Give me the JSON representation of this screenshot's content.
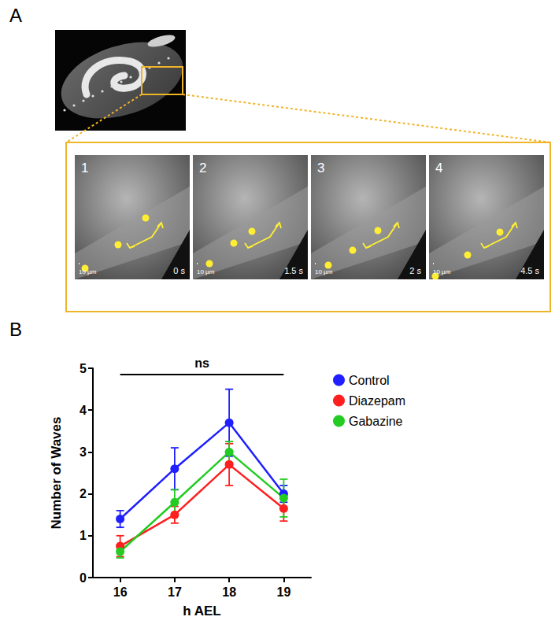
{
  "panels": {
    "a": {
      "letter": "A",
      "frames": [
        {
          "label": "1",
          "time": "0 s",
          "scale_bar": "10 µm"
        },
        {
          "label": "2",
          "time": "1.5 s",
          "scale_bar": "10 µm"
        },
        {
          "label": "3",
          "time": "2 s",
          "scale_bar": "10 µm"
        },
        {
          "label": "4",
          "time": "4.5 s",
          "scale_bar": "10 µm"
        }
      ]
    },
    "b": {
      "letter": "B"
    }
  },
  "chart_data": {
    "type": "line",
    "categories": [
      "16",
      "17",
      "18",
      "19"
    ],
    "x_label": "h AEL",
    "y_label": "Number of Waves",
    "ylim": [
      0,
      5
    ],
    "yticks": [
      0,
      1,
      2,
      3,
      4,
      5
    ],
    "grid": false,
    "legend": "right",
    "marker": "circle",
    "line_style": "solid",
    "annotations": [
      {
        "text": "ns",
        "from": "16",
        "to": "19",
        "y": 4.85
      }
    ],
    "series": [
      {
        "name": "Control",
        "color": "#1f1fff",
        "values": [
          1.4,
          2.6,
          3.7,
          2.0
        ],
        "errors": [
          0.2,
          0.5,
          0.8,
          0.2
        ]
      },
      {
        "name": "Diazepam",
        "color": "#ff1f1f",
        "values": [
          0.75,
          1.5,
          2.7,
          1.65
        ],
        "errors": [
          0.25,
          0.2,
          0.5,
          0.3
        ]
      },
      {
        "name": "Gabazine",
        "color": "#22cc22",
        "values": [
          0.62,
          1.8,
          3.0,
          1.9
        ],
        "errors": [
          0.15,
          0.3,
          0.25,
          0.45
        ]
      }
    ]
  }
}
